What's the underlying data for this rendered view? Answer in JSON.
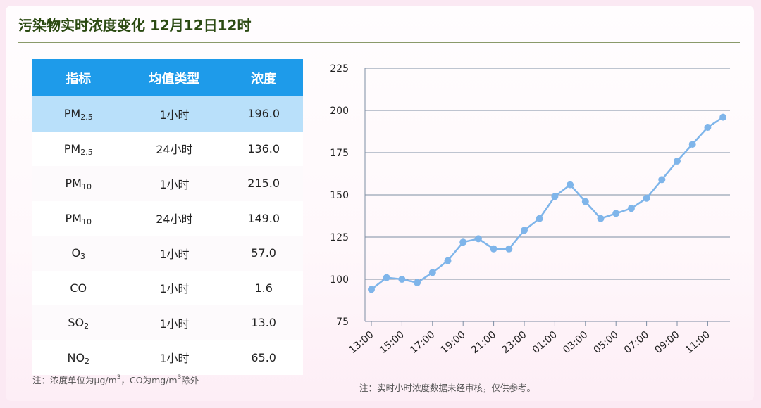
{
  "title": "污染物实时浓度变化 12月12日12时",
  "table": {
    "headers": [
      "指标",
      "均值类型",
      "浓度"
    ],
    "rows": [
      {
        "pollutant": "PM",
        "sub": "2.5",
        "avg": "1小时",
        "value": "196.0"
      },
      {
        "pollutant": "PM",
        "sub": "2.5",
        "avg": "24小时",
        "value": "136.0"
      },
      {
        "pollutant": "PM",
        "sub": "10",
        "avg": "1小时",
        "value": "215.0"
      },
      {
        "pollutant": "PM",
        "sub": "10",
        "avg": "24小时",
        "value": "149.0"
      },
      {
        "pollutant": "O",
        "sub": "3",
        "avg": "1小时",
        "value": "57.0"
      },
      {
        "pollutant": "CO",
        "sub": "",
        "avg": "1小时",
        "value": "1.6"
      },
      {
        "pollutant": "SO",
        "sub": "2",
        "avg": "1小时",
        "value": "13.0"
      },
      {
        "pollutant": "NO",
        "sub": "2",
        "avg": "1小时",
        "value": "65.0"
      }
    ]
  },
  "notes": {
    "units_a": "注：浓度单位为μg/m",
    "units_sup": "3",
    "units_b": "，CO为mg/m",
    "units_sup2": "3",
    "units_c": "除外",
    "disclaimer": "注：实时小时浓度数据未经审核，仅供参考。"
  },
  "colors": {
    "header_bg": "#1e9bea",
    "highlight_row": "#b9e0fa",
    "line": "#7fb5ea",
    "title": "#2b4a12"
  },
  "chart_data": {
    "type": "line",
    "x": [
      "13:00",
      "14:00",
      "15:00",
      "16:00",
      "17:00",
      "18:00",
      "19:00",
      "20:00",
      "21:00",
      "22:00",
      "23:00",
      "00:00",
      "01:00",
      "02:00",
      "03:00",
      "04:00",
      "05:00",
      "06:00",
      "07:00",
      "08:00",
      "09:00",
      "10:00",
      "11:00",
      "12:00"
    ],
    "x_tick_labels": [
      "13:00",
      "15:00",
      "17:00",
      "19:00",
      "21:00",
      "23:00",
      "01:00",
      "03:00",
      "05:00",
      "07:00",
      "09:00",
      "11:00"
    ],
    "series": [
      {
        "values": [
          94,
          101,
          100,
          98,
          104,
          111,
          122,
          124,
          118,
          118,
          129,
          136,
          149,
          156,
          146,
          136,
          139,
          142,
          148,
          159,
          170,
          180,
          190,
          196
        ]
      }
    ],
    "ylim": [
      75,
      225
    ],
    "yticks": [
      75,
      100,
      125,
      150,
      175,
      200,
      225
    ],
    "grid": true
  }
}
